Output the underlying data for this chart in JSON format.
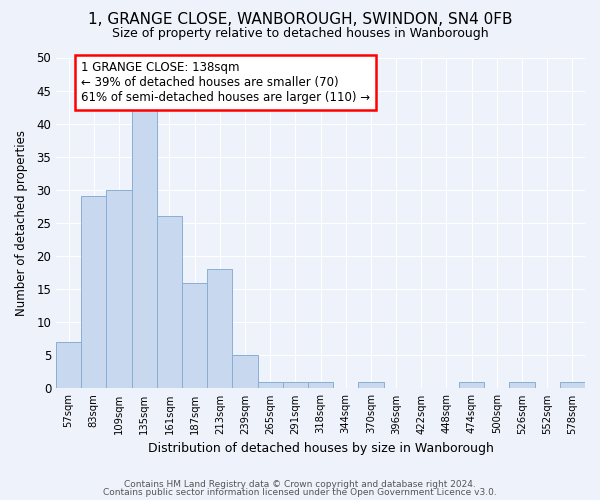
{
  "title": "1, GRANGE CLOSE, WANBOROUGH, SWINDON, SN4 0FB",
  "subtitle": "Size of property relative to detached houses in Wanborough",
  "xlabel": "Distribution of detached houses by size in Wanborough",
  "ylabel": "Number of detached properties",
  "bar_color": "#c8d8ee",
  "bar_edge_color": "#8aafd4",
  "categories": [
    "57sqm",
    "83sqm",
    "109sqm",
    "135sqm",
    "161sqm",
    "187sqm",
    "213sqm",
    "239sqm",
    "265sqm",
    "291sqm",
    "318sqm",
    "344sqm",
    "370sqm",
    "396sqm",
    "422sqm",
    "448sqm",
    "474sqm",
    "500sqm",
    "526sqm",
    "552sqm",
    "578sqm"
  ],
  "values": [
    7,
    29,
    30,
    42,
    26,
    16,
    18,
    5,
    1,
    1,
    1,
    0,
    1,
    0,
    0,
    0,
    1,
    0,
    1,
    0,
    1
  ],
  "annotation_text": "1 GRANGE CLOSE: 138sqm\n← 39% of detached houses are smaller (70)\n61% of semi-detached houses are larger (110) →",
  "annotation_box_color": "white",
  "annotation_box_edge": "red",
  "ylim": [
    0,
    50
  ],
  "yticks": [
    0,
    5,
    10,
    15,
    20,
    25,
    30,
    35,
    40,
    45,
    50
  ],
  "footer1": "Contains HM Land Registry data © Crown copyright and database right 2024.",
  "footer2": "Contains public sector information licensed under the Open Government Licence v3.0.",
  "bg_color": "#eef2fa",
  "grid_color": "#ffffff"
}
